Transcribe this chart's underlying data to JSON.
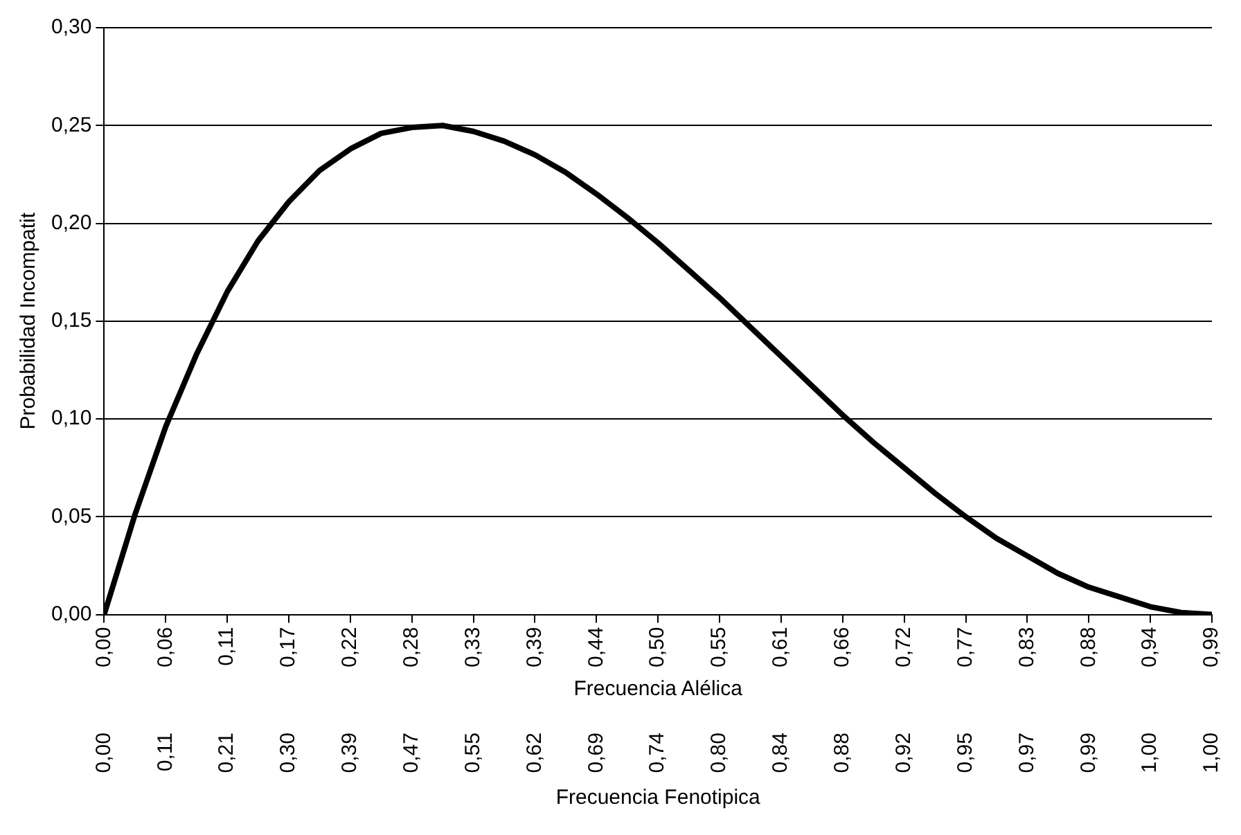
{
  "chart_data": {
    "type": "line",
    "xlabel": "Frecuencia Alélica",
    "ylabel": "Probabilidad Incompatit",
    "x": [
      0,
      0.0275,
      0.055,
      0.0825,
      0.11,
      0.1375,
      0.165,
      0.1925,
      0.22,
      0.2475,
      0.275,
      0.3025,
      0.33,
      0.3575,
      0.385,
      0.4125,
      0.44,
      0.4675,
      0.495,
      0.5225,
      0.55,
      0.5775,
      0.605,
      0.6325,
      0.66,
      0.6875,
      0.715,
      0.7425,
      0.77,
      0.7975,
      0.825,
      0.8525,
      0.88,
      0.9075,
      0.935,
      0.9625,
      0.99
    ],
    "series": [
      {
        "color": "#000000",
        "values": [
          0,
          0.051,
          0.096,
          0.133,
          0.165,
          0.191,
          0.211,
          0.227,
          0.238,
          0.246,
          0.249,
          0.25,
          0.247,
          0.242,
          0.235,
          0.226,
          0.215,
          0.203,
          0.19,
          0.176,
          0.162,
          0.147,
          0.132,
          0.117,
          0.102,
          0.088,
          0.075,
          0.062,
          0.05,
          0.039,
          0.03,
          0.021,
          0.014,
          0.009,
          0.004,
          0.001,
          0
        ]
      }
    ],
    "xlim": [
      0,
      0.99
    ],
    "xticks": [
      {
        "value": 0,
        "label": "0,00"
      },
      {
        "value": 0.055,
        "label": "0,06"
      },
      {
        "value": 0.11,
        "label": "0,11"
      },
      {
        "value": 0.165,
        "label": "0,17"
      },
      {
        "value": 0.22,
        "label": "0,22"
      },
      {
        "value": 0.275,
        "label": "0,28"
      },
      {
        "value": 0.33,
        "label": "0,33"
      },
      {
        "value": 0.385,
        "label": "0,39"
      },
      {
        "value": 0.44,
        "label": "0,44"
      },
      {
        "value": 0.495,
        "label": "0,50"
      },
      {
        "value": 0.55,
        "label": "0,55"
      },
      {
        "value": 0.605,
        "label": "0,61"
      },
      {
        "value": 0.66,
        "label": "0,66"
      },
      {
        "value": 0.715,
        "label": "0,72"
      },
      {
        "value": 0.77,
        "label": "0,77"
      },
      {
        "value": 0.825,
        "label": "0,83"
      },
      {
        "value": 0.88,
        "label": "0,88"
      },
      {
        "value": 0.935,
        "label": "0,94"
      },
      {
        "value": 0.99,
        "label": "0,99"
      }
    ],
    "annotations": [
      "0,00",
      "0,11",
      "0,21",
      "0,30",
      "0,39",
      "0,47",
      "0,55",
      "0,62",
      "0,69",
      "0,74",
      "0,80",
      "0,84",
      "0,88",
      "0,92",
      "0,95",
      "0,97",
      "0,99",
      "1,00",
      "1,00",
      "Frecuencia Fenotipica"
    ],
    "ylim": [
      0,
      0.3
    ],
    "yticks": [
      {
        "value": 0,
        "label": "0,00"
      },
      {
        "value": 0.05,
        "label": "0,05"
      },
      {
        "value": 0.1,
        "label": "0,10"
      },
      {
        "value": 0.15,
        "label": "0,15"
      },
      {
        "value": 0.2,
        "label": "0,20"
      },
      {
        "value": 0.25,
        "label": "0,25"
      },
      {
        "value": 0.3,
        "label": "0,30"
      }
    ],
    "grid": "y",
    "legend": false,
    "marker": "none",
    "line_style": "solid"
  }
}
